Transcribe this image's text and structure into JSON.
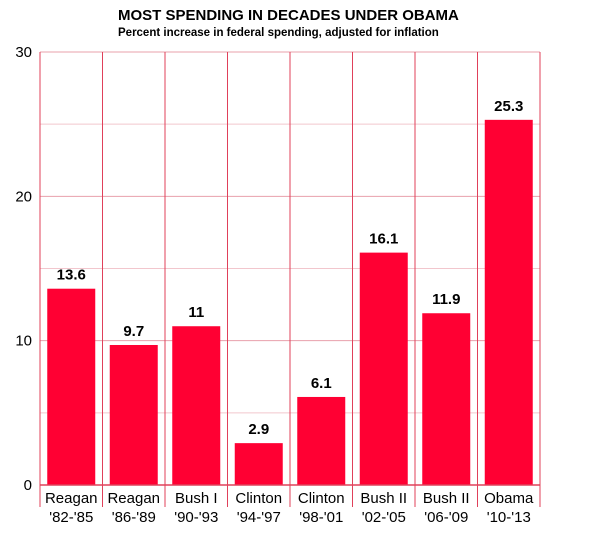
{
  "chart_data": {
    "type": "bar",
    "title": "MOST SPENDING IN DECADES UNDER OBAMA",
    "subtitle": "Percent increase in federal spending, adjusted for inflation",
    "categories": [
      [
        "Reagan",
        "'82-'85"
      ],
      [
        "Reagan",
        "'86-'89"
      ],
      [
        "Bush I",
        "'90-'93"
      ],
      [
        "Clinton",
        "'94-'97"
      ],
      [
        "Clinton",
        "'98-'01"
      ],
      [
        "Bush II",
        "'02-'05"
      ],
      [
        "Bush II",
        "'06-'09"
      ],
      [
        "Obama",
        "'10-'13"
      ]
    ],
    "values": [
      13.6,
      9.7,
      11,
      2.9,
      6.1,
      16.1,
      11.9,
      25.3
    ],
    "value_labels": [
      "13.6",
      "9.7",
      "11",
      "2.9",
      "6.1",
      "16.1",
      "11.9",
      "25.3"
    ],
    "ylim": [
      0,
      30
    ],
    "yticks": [
      "0",
      "10",
      "20",
      "30"
    ],
    "xlabel": "",
    "ylabel": "",
    "grid": true,
    "colors": {
      "bar": "#ff0033",
      "grid": "#e8a0ab",
      "axis": "#e0405a"
    }
  }
}
